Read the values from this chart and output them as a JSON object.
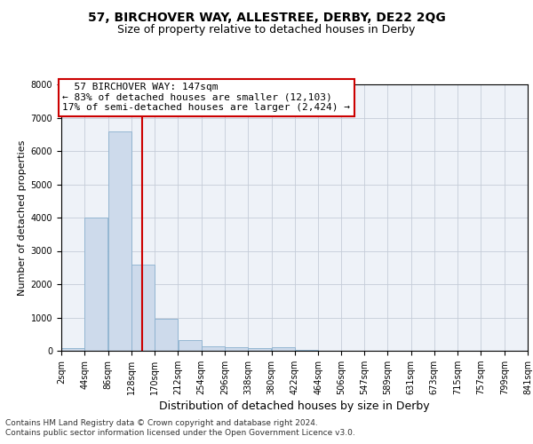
{
  "title": "57, BIRCHOVER WAY, ALLESTREE, DERBY, DE22 2QG",
  "subtitle": "Size of property relative to detached houses in Derby",
  "xlabel": "Distribution of detached houses by size in Derby",
  "ylabel": "Number of detached properties",
  "bar_lefts": [
    2,
    44,
    86,
    128,
    170,
    212,
    254,
    296,
    338,
    380,
    422,
    464,
    506,
    547,
    589,
    631,
    673,
    715,
    757,
    799
  ],
  "bar_rights": [
    44,
    86,
    128,
    170,
    212,
    254,
    296,
    338,
    380,
    422,
    464,
    506,
    547,
    589,
    631,
    673,
    715,
    757,
    799,
    841
  ],
  "bar_values": [
    70,
    4000,
    6600,
    2600,
    960,
    320,
    130,
    100,
    80,
    100,
    30,
    0,
    0,
    0,
    0,
    0,
    0,
    0,
    0,
    0
  ],
  "tick_positions": [
    2,
    44,
    86,
    128,
    170,
    212,
    254,
    296,
    338,
    380,
    422,
    464,
    506,
    547,
    589,
    631,
    673,
    715,
    757,
    799,
    841
  ],
  "tick_labels": [
    "2sqm",
    "44sqm",
    "86sqm",
    "128sqm",
    "170sqm",
    "212sqm",
    "254sqm",
    "296sqm",
    "338sqm",
    "380sqm",
    "422sqm",
    "464sqm",
    "506sqm",
    "547sqm",
    "589sqm",
    "631sqm",
    "673sqm",
    "715sqm",
    "757sqm",
    "799sqm",
    "841sqm"
  ],
  "bar_color": "#cddaeb",
  "bar_edgecolor": "#8ab0ce",
  "vline_x": 147,
  "vline_color": "#cc0000",
  "ylim": [
    0,
    8000
  ],
  "xlim": [
    2,
    841
  ],
  "yticks": [
    0,
    1000,
    2000,
    3000,
    4000,
    5000,
    6000,
    7000,
    8000
  ],
  "annotation_title": "  57 BIRCHOVER WAY: 147sqm",
  "annotation_line1": "← 83% of detached houses are smaller (12,103)",
  "annotation_line2": "17% of semi-detached houses are larger (2,424) →",
  "annotation_box_edgecolor": "#cc0000",
  "annotation_box_facecolor": "#ffffff",
  "background_color": "#eef2f8",
  "grid_color": "#c5ccd8",
  "title_fontsize": 10,
  "subtitle_fontsize": 9,
  "ylabel_fontsize": 8,
  "xlabel_fontsize": 9,
  "tick_fontsize": 7,
  "annot_fontsize": 8,
  "footnote1": "Contains HM Land Registry data © Crown copyright and database right 2024.",
  "footnote2": "Contains public sector information licensed under the Open Government Licence v3.0.",
  "footnote_fontsize": 6.5
}
